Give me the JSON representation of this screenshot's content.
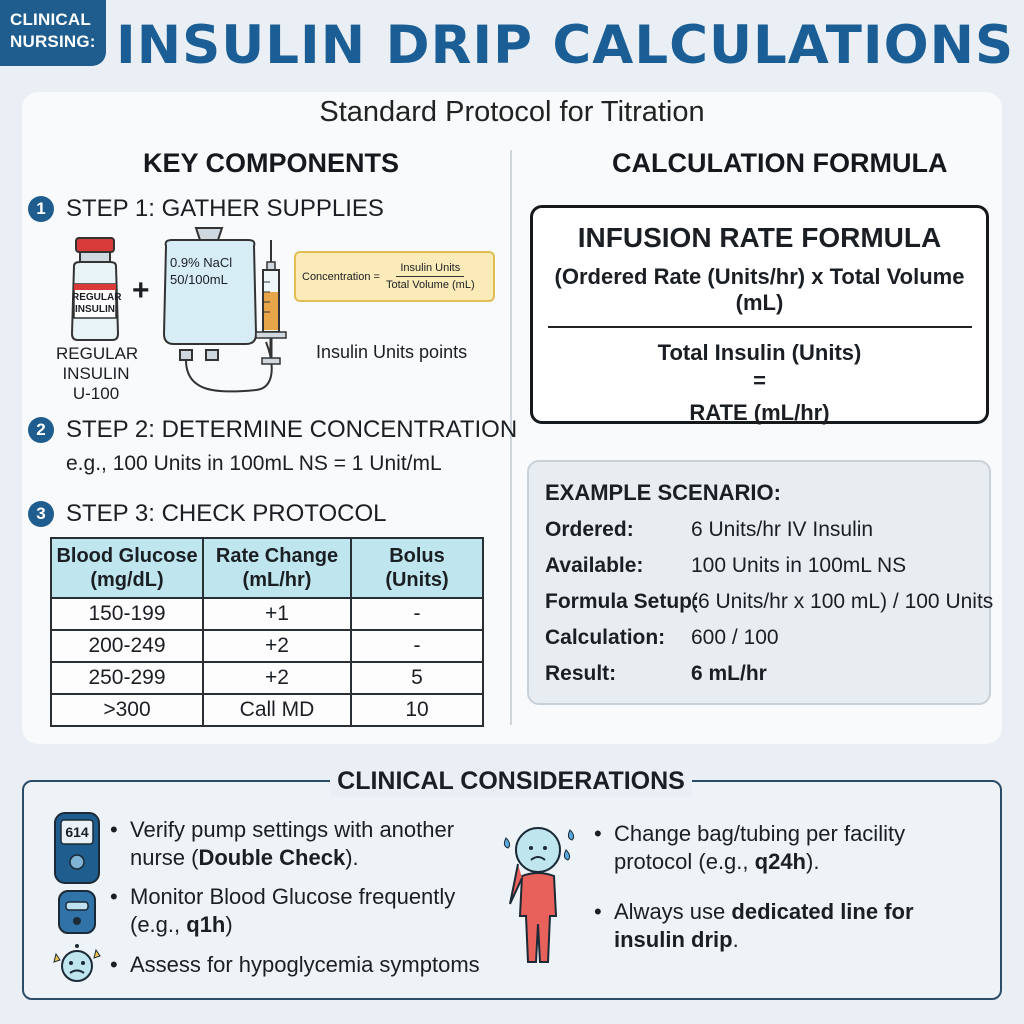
{
  "badge": {
    "line1": "CLINICAL",
    "line2": "NURSING:"
  },
  "title": "INSULIN DRIP CALCULATIONS",
  "subtitle": "Standard Protocol for Titration",
  "left": {
    "heading": "KEY COMPONENTS",
    "steps": [
      {
        "num": "1",
        "label": "STEP 1: GATHER SUPPLIES"
      },
      {
        "num": "2",
        "label": "STEP 2: DETERMINE CONCENTRATION"
      },
      {
        "num": "3",
        "label": "STEP 3: CHECK PROTOCOL"
      }
    ],
    "vial_label": "REGULAR INSULIN",
    "vial_caption": [
      "REGULAR",
      "INSULIN",
      "U-100"
    ],
    "plus": "+",
    "bag_label": [
      "0.9% NaCl",
      "50/100mL"
    ],
    "concentration": {
      "label": "Concentration =",
      "numerator": "Insulin Units",
      "denominator": "Total Volume (mL)"
    },
    "syringe_caption": "Insulin Units points",
    "step2_example": "e.g., 100 Units in 100mL NS = 1 Unit/mL",
    "table": {
      "headers": [
        [
          "Blood Glucose",
          "(mg/dL)"
        ],
        [
          "Rate Change",
          "(mL/hr)"
        ],
        [
          "Bolus",
          "(Units)"
        ]
      ],
      "rows": [
        [
          "150-199",
          "+1",
          "-"
        ],
        [
          "200-249",
          "+2",
          "-"
        ],
        [
          "250-299",
          "+2",
          "5"
        ],
        [
          ">300",
          "Call MD",
          "10"
        ]
      ]
    }
  },
  "right": {
    "heading": "CALCULATION FORMULA",
    "formula": {
      "title": "INFUSION RATE FORMULA",
      "numerator": "(Ordered Rate (Units/hr) x Total Volume (mL)",
      "denominator": "Total Insulin (Units)",
      "equals": "=",
      "result": "RATE (mL/hr)"
    },
    "example": {
      "heading": "EXAMPLE SCENARIO:",
      "rows": [
        {
          "key": "Ordered:",
          "value": "6 Units/hr IV Insulin"
        },
        {
          "key": "Available:",
          "value": "100 Units in 100mL NS"
        },
        {
          "key": "Formula Setup:",
          "value": "(6 Units/hr x 100 mL) / 100 Units"
        },
        {
          "key": "Calculation:",
          "value": "600 / 100"
        },
        {
          "key": "Result:",
          "value": "6 mL/hr"
        }
      ]
    }
  },
  "clinical": {
    "heading": "CLINICAL CONSIDERATIONS",
    "glucometer_reading": "614",
    "left_items": [
      {
        "pre": "Verify pump settings with another nurse (",
        "bold": "Double Check",
        "post": ")."
      },
      {
        "pre": "Monitor Blood Glucose frequently (e.g., ",
        "bold": "q1h",
        "post": ")"
      },
      {
        "pre": "Assess for hypoglycemia symptoms",
        "bold": "",
        "post": ""
      }
    ],
    "right_items": [
      {
        "pre": "Change bag/tubing per facility protocol (e.g., ",
        "bold": "q24h",
        "post": ")."
      },
      {
        "pre": "Always use ",
        "bold": "dedicated line for insulin drip",
        "post": "."
      }
    ]
  },
  "colors": {
    "primary": "#1a5e95",
    "badge": "#1f5d8f",
    "table_header": "#bfe6ef",
    "concentration_box": "#fbebb8",
    "person": "#e8625b"
  },
  "icons": [
    "insulin-vial-icon",
    "iv-bag-icon",
    "syringe-icon",
    "glucometer-icon",
    "insulin-pump-icon",
    "hypoglycemia-face-icon",
    "sweating-person-icon"
  ]
}
